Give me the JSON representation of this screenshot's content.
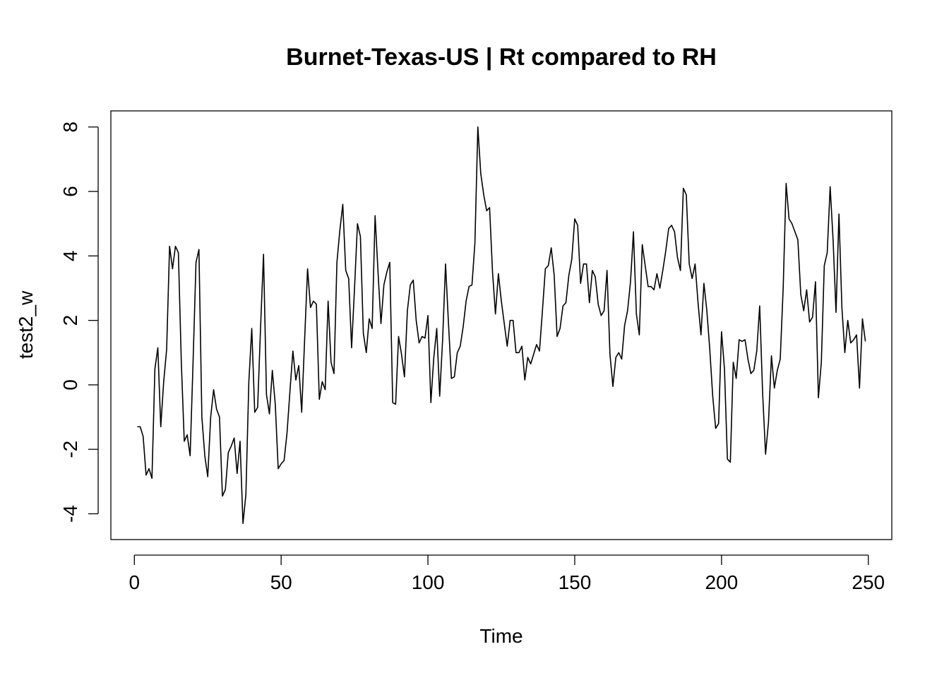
{
  "chart_data": {
    "type": "line",
    "title": "Burnet-Texas-US | Rt compared to RH",
    "xlabel": "Time",
    "ylabel": "test2_w",
    "xlim": [
      -8,
      258
    ],
    "ylim": [
      -4.8,
      8.5
    ],
    "x_ticks": [
      0,
      50,
      100,
      150,
      200,
      250
    ],
    "y_ticks": [
      -4,
      -2,
      0,
      2,
      4,
      6,
      8
    ],
    "grid": false,
    "legend": "none",
    "line_color": "#000000",
    "series": [
      {
        "values": [
          -1.3,
          -1.3,
          -1.6,
          -2.8,
          -2.6,
          -2.9,
          0.5,
          1.15,
          -1.3,
          0.1,
          1.1,
          4.3,
          3.6,
          4.3,
          4.1,
          0.7,
          -1.75,
          -1.55,
          -2.2,
          0.7,
          3.8,
          4.2,
          -1.0,
          -2.2,
          -2.85,
          -1.0,
          -0.15,
          -0.75,
          -1.0,
          -3.45,
          -3.25,
          -2.1,
          -1.9,
          -1.65,
          -2.75,
          -1.75,
          -4.3,
          -3.4,
          0.1,
          1.75,
          -0.85,
          -0.7,
          1.8,
          4.05,
          -0.3,
          -0.9,
          0.45,
          -0.6,
          -2.6,
          -2.45,
          -2.35,
          -1.5,
          -0.2,
          1.05,
          0.15,
          0.6,
          -0.85,
          1.4,
          3.6,
          2.4,
          2.6,
          2.5,
          -0.45,
          0.1,
          -0.15,
          2.6,
          0.7,
          0.35,
          3.8,
          4.8,
          5.6,
          3.55,
          3.3,
          1.15,
          3.0,
          5.0,
          4.6,
          1.6,
          1.0,
          2.05,
          1.75,
          5.25,
          3.5,
          1.9,
          3.1,
          3.5,
          3.8,
          -0.55,
          -0.6,
          1.5,
          0.95,
          0.25,
          2.3,
          3.1,
          3.25,
          2.0,
          1.3,
          1.5,
          1.45,
          2.15,
          -0.55,
          0.85,
          1.75,
          -0.35,
          1.4,
          3.75,
          1.9,
          0.2,
          0.25,
          1.0,
          1.2,
          1.8,
          2.6,
          3.05,
          3.1,
          4.4,
          8.0,
          6.55,
          5.9,
          5.4,
          5.5,
          3.5,
          2.2,
          3.45,
          2.6,
          1.9,
          1.2,
          2.0,
          2.0,
          1.0,
          1.0,
          1.2,
          0.15,
          0.85,
          0.65,
          0.95,
          1.25,
          1.05,
          2.3,
          3.6,
          3.7,
          4.25,
          3.4,
          1.5,
          1.75,
          2.45,
          2.55,
          3.4,
          3.9,
          5.15,
          4.95,
          3.15,
          3.75,
          3.75,
          2.55,
          3.55,
          3.35,
          2.5,
          2.15,
          2.3,
          3.55,
          0.95,
          -0.05,
          0.85,
          1.0,
          0.8,
          1.85,
          2.3,
          3.2,
          4.75,
          2.2,
          1.55,
          4.35,
          3.7,
          3.05,
          3.05,
          2.95,
          3.45,
          3.0,
          3.55,
          4.15,
          4.85,
          4.95,
          4.75,
          3.95,
          3.55,
          6.1,
          5.9,
          3.75,
          3.3,
          3.75,
          2.55,
          1.55,
          3.15,
          2.3,
          1.1,
          -0.35,
          -1.35,
          -1.2,
          1.65,
          0.5,
          -2.3,
          -2.4,
          0.7,
          0.2,
          1.4,
          1.35,
          1.4,
          0.8,
          0.35,
          0.45,
          1.05,
          2.45,
          -0.25,
          -2.15,
          -1.15,
          0.9,
          -0.1,
          0.45,
          0.8,
          3.0,
          6.25,
          5.15,
          5.0,
          4.75,
          4.5,
          2.8,
          2.3,
          2.95,
          1.95,
          2.1,
          3.2,
          -0.4,
          0.7,
          3.7,
          4.1,
          6.15,
          4.5,
          2.25,
          5.3,
          2.4,
          1.0,
          2.0,
          1.3,
          1.4,
          1.55,
          -0.1,
          2.05,
          1.35
        ]
      }
    ]
  }
}
